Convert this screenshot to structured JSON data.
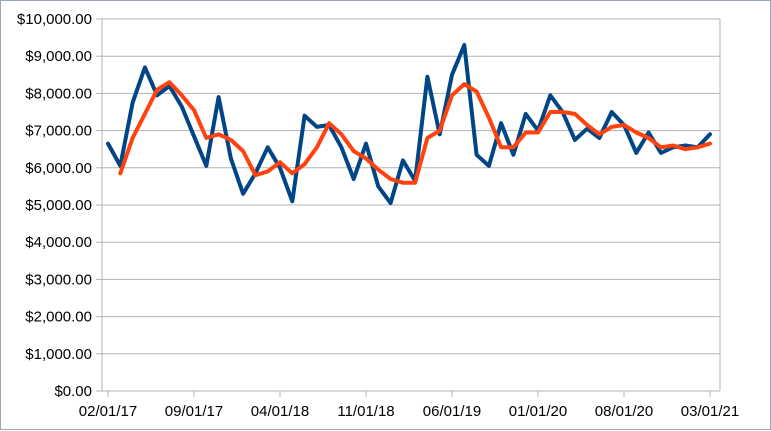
{
  "chart_data": {
    "type": "line",
    "title": "",
    "xlabel": "",
    "ylabel": "",
    "ylim": [
      0,
      10000
    ],
    "y_ticks": [
      0,
      1000,
      2000,
      3000,
      4000,
      5000,
      6000,
      7000,
      8000,
      9000,
      10000
    ],
    "y_tick_labels": [
      "$0.00",
      "$1,000.00",
      "$2,000.00",
      "$3,000.00",
      "$4,000.00",
      "$5,000.00",
      "$6,000.00",
      "$7,000.00",
      "$8,000.00",
      "$9,000.00",
      "$10,000.00"
    ],
    "x_tick_labels": [
      "02/01/17",
      "09/01/17",
      "04/01/18",
      "11/01/18",
      "06/01/19",
      "01/01/20",
      "08/01/20",
      "03/01/21"
    ],
    "grid": true,
    "legend": "none",
    "categories": [
      "02/01/17",
      "03/01/17",
      "04/01/17",
      "05/01/17",
      "06/01/17",
      "07/01/17",
      "08/01/17",
      "09/01/17",
      "10/01/17",
      "11/01/17",
      "12/01/17",
      "01/01/18",
      "02/01/18",
      "03/01/18",
      "04/01/18",
      "05/01/18",
      "06/01/18",
      "07/01/18",
      "08/01/18",
      "09/01/18",
      "10/01/18",
      "11/01/18",
      "12/01/18",
      "01/01/19",
      "02/01/19",
      "03/01/19",
      "04/01/19",
      "05/01/19",
      "06/01/19",
      "07/01/19",
      "08/01/19",
      "09/01/19",
      "10/01/19",
      "11/01/19",
      "12/01/19",
      "01/01/20",
      "02/01/20",
      "03/01/20",
      "04/01/20",
      "05/01/20",
      "06/01/20",
      "07/01/20",
      "08/01/20",
      "09/01/20",
      "10/01/20",
      "11/01/20",
      "12/01/20",
      "01/01/21",
      "02/01/21",
      "03/01/21"
    ],
    "series": [
      {
        "color": "#004586",
        "values": [
          6650,
          6050,
          7750,
          8700,
          7950,
          8200,
          7650,
          6850,
          6050,
          7900,
          6250,
          5300,
          5850,
          6550,
          6000,
          5100,
          7400,
          7100,
          7150,
          6550,
          5700,
          6650,
          5500,
          5050,
          6200,
          5650,
          8450,
          6900,
          8500,
          9300,
          6350,
          6050,
          7200,
          6350,
          7450,
          7000,
          7950,
          7500,
          6750,
          7050,
          6800,
          7500,
          7150,
          6400,
          6950,
          6400,
          6550,
          6600,
          6550,
          6900
        ]
      },
      {
        "color": "#ff420e",
        "values": [
          null,
          5850,
          6800,
          7450,
          8100,
          8300,
          7950,
          7550,
          6800,
          6900,
          6750,
          6450,
          5800,
          5900,
          6150,
          5850,
          6100,
          6550,
          7200,
          6900,
          6450,
          6250,
          5950,
          5700,
          5600,
          5600,
          6800,
          7000,
          7950,
          8250,
          8050,
          7350,
          6550,
          6550,
          6950,
          6950,
          7500,
          7500,
          7450,
          7150,
          6900,
          7100,
          7150,
          6950,
          6800,
          6550,
          6600,
          6500,
          6550,
          6650
        ]
      }
    ]
  }
}
